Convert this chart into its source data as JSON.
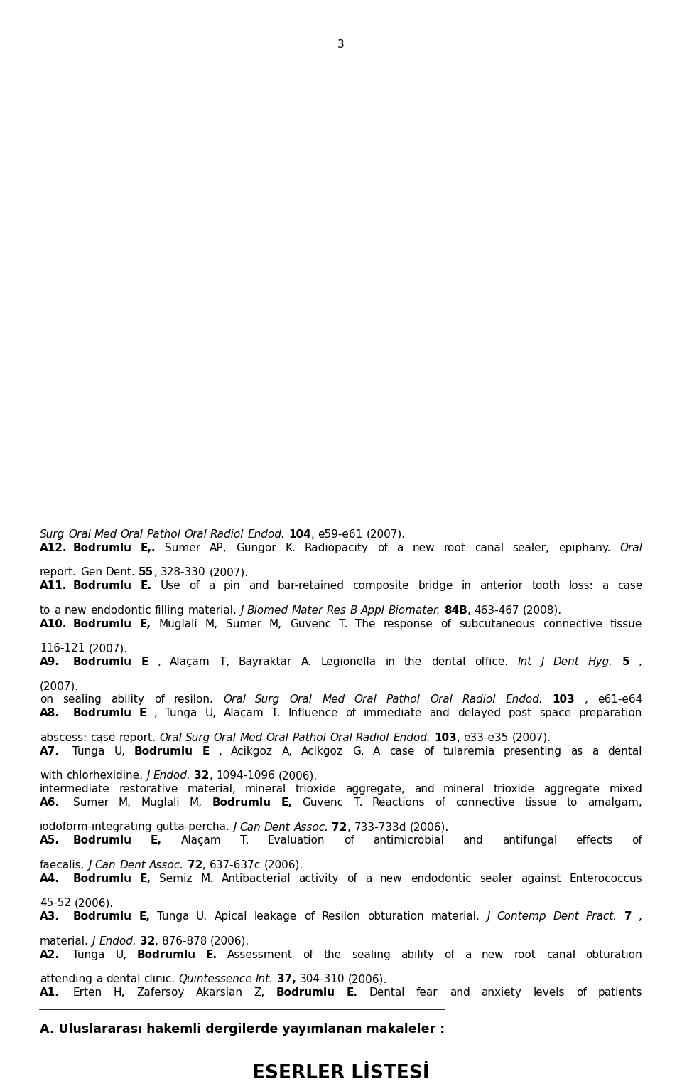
{
  "title": "ESERLER LİSTESİ",
  "background_color": "#ffffff",
  "text_color": "#000000",
  "page_number": "3",
  "section_header": "A. Uluslararası hakemli dergilerde yayımlanan makaleler :",
  "entries": [
    {
      "label": "A1.",
      "text": "Erten H, Zafersoy Akarslan Z, <b>Bodrumlu E.</b> Dental fear and anxiety levels of patients attending a dental clinic. <i>Quintessence Int.</i> <b>37,</b> 304-310 (2006)."
    },
    {
      "label": "A2.",
      "text": "Tunga U, <b>Bodrumlu E.</b> Assessment of the sealing ability of a new root canal obturation material. <i>J Endod.</i> <b>32</b>, 876-878 (2006)."
    },
    {
      "label": "A3.",
      "text": "<b>Bodrumlu E,</b> Tunga U. Apical leakage of Resilon obturation material. <i>J Contemp Dent Pract.</i> <b>7</b>, 45-52 (2006)."
    },
    {
      "label": "A4.",
      "text": "<b>Bodrumlu E,</b> Semiz M. Antibacterial activity of a new endodontic sealer against Enterococcus faecalis. <i>J Can Dent Assoc.</i> <b>72</b>, 637-637c (2006)."
    },
    {
      "label": "A5.",
      "text": "<b>Bodrumlu E,</b> Alaçam T. Evaluation of antimicrobial and antifungal effects of iodoform-integrating gutta-percha. <i>J Can Dent Assoc.</i> <b>72</b>, 733-733d (2006)."
    },
    {
      "label": "A6.",
      "text": "Sumer M, Muglali M, <b>Bodrumlu E,</b> Guvenc T. Reactions of connective tissue to amalgam, intermediate restorative material, mineral trioxide aggregate, and mineral trioxide aggregate mixed with chlorhexidine. <i>J Endod.</i> <b>32</b>, 1094-1096 (2006)."
    },
    {
      "label": "A7.",
      "text": "Tunga U, <b>Bodrumlu E</b>, Acikgoz A, Acikgoz G. A case of tularemia presenting as a dental abscess: case report. <i>Oral Surg Oral Med Oral Pathol Oral Radiol Endod.</i> <b>103</b>, e33-e35 (2007)."
    },
    {
      "label": "A8.",
      "text": "<b>Bodrumlu E</b>, Tunga U, Alaçam T. Influence of immediate and delayed post space preparation on sealing ability of resilon. <i>Oral Surg Oral Med Oral Pathol Oral Radiol Endod.</i> <b>103</b>, e61-e64 (2007)."
    },
    {
      "label": "A9.",
      "text": "<b>Bodrumlu E</b>, Alaçam T, Bayraktar A. Legionella in the dental office. <i>Int J Dent Hyg.</i> <b>5</b>, 116-121 (2007)."
    },
    {
      "label": "A10.",
      "text": "<b>Bodrumlu E,</b> Muglali M, Sumer M, Guvenc T. The response of subcutaneous connective tissue to a new endodontic filling material. <i>J Biomed Mater Res B Appl Biomater.</i> <b>84B</b>, 463-467 (2008)."
    },
    {
      "label": "A11.",
      "text": "<b>Bodrumlu E.</b> Use of a pin and bar-retained composite bridge in anterior tooth loss: a case report. Gen Dent. <b>55</b>, 328-330 (2007)."
    },
    {
      "label": "A12.",
      "text": "<b>Bodrumlu E,.</b> Sumer AP, Gungor K. Radiopacity of a new root canal sealer, epiphany. <i>Oral Surg Oral Med Oral Pathol Oral Radiol Endod.</i> <b>104</b>, e59-e61 (2007)."
    }
  ]
}
